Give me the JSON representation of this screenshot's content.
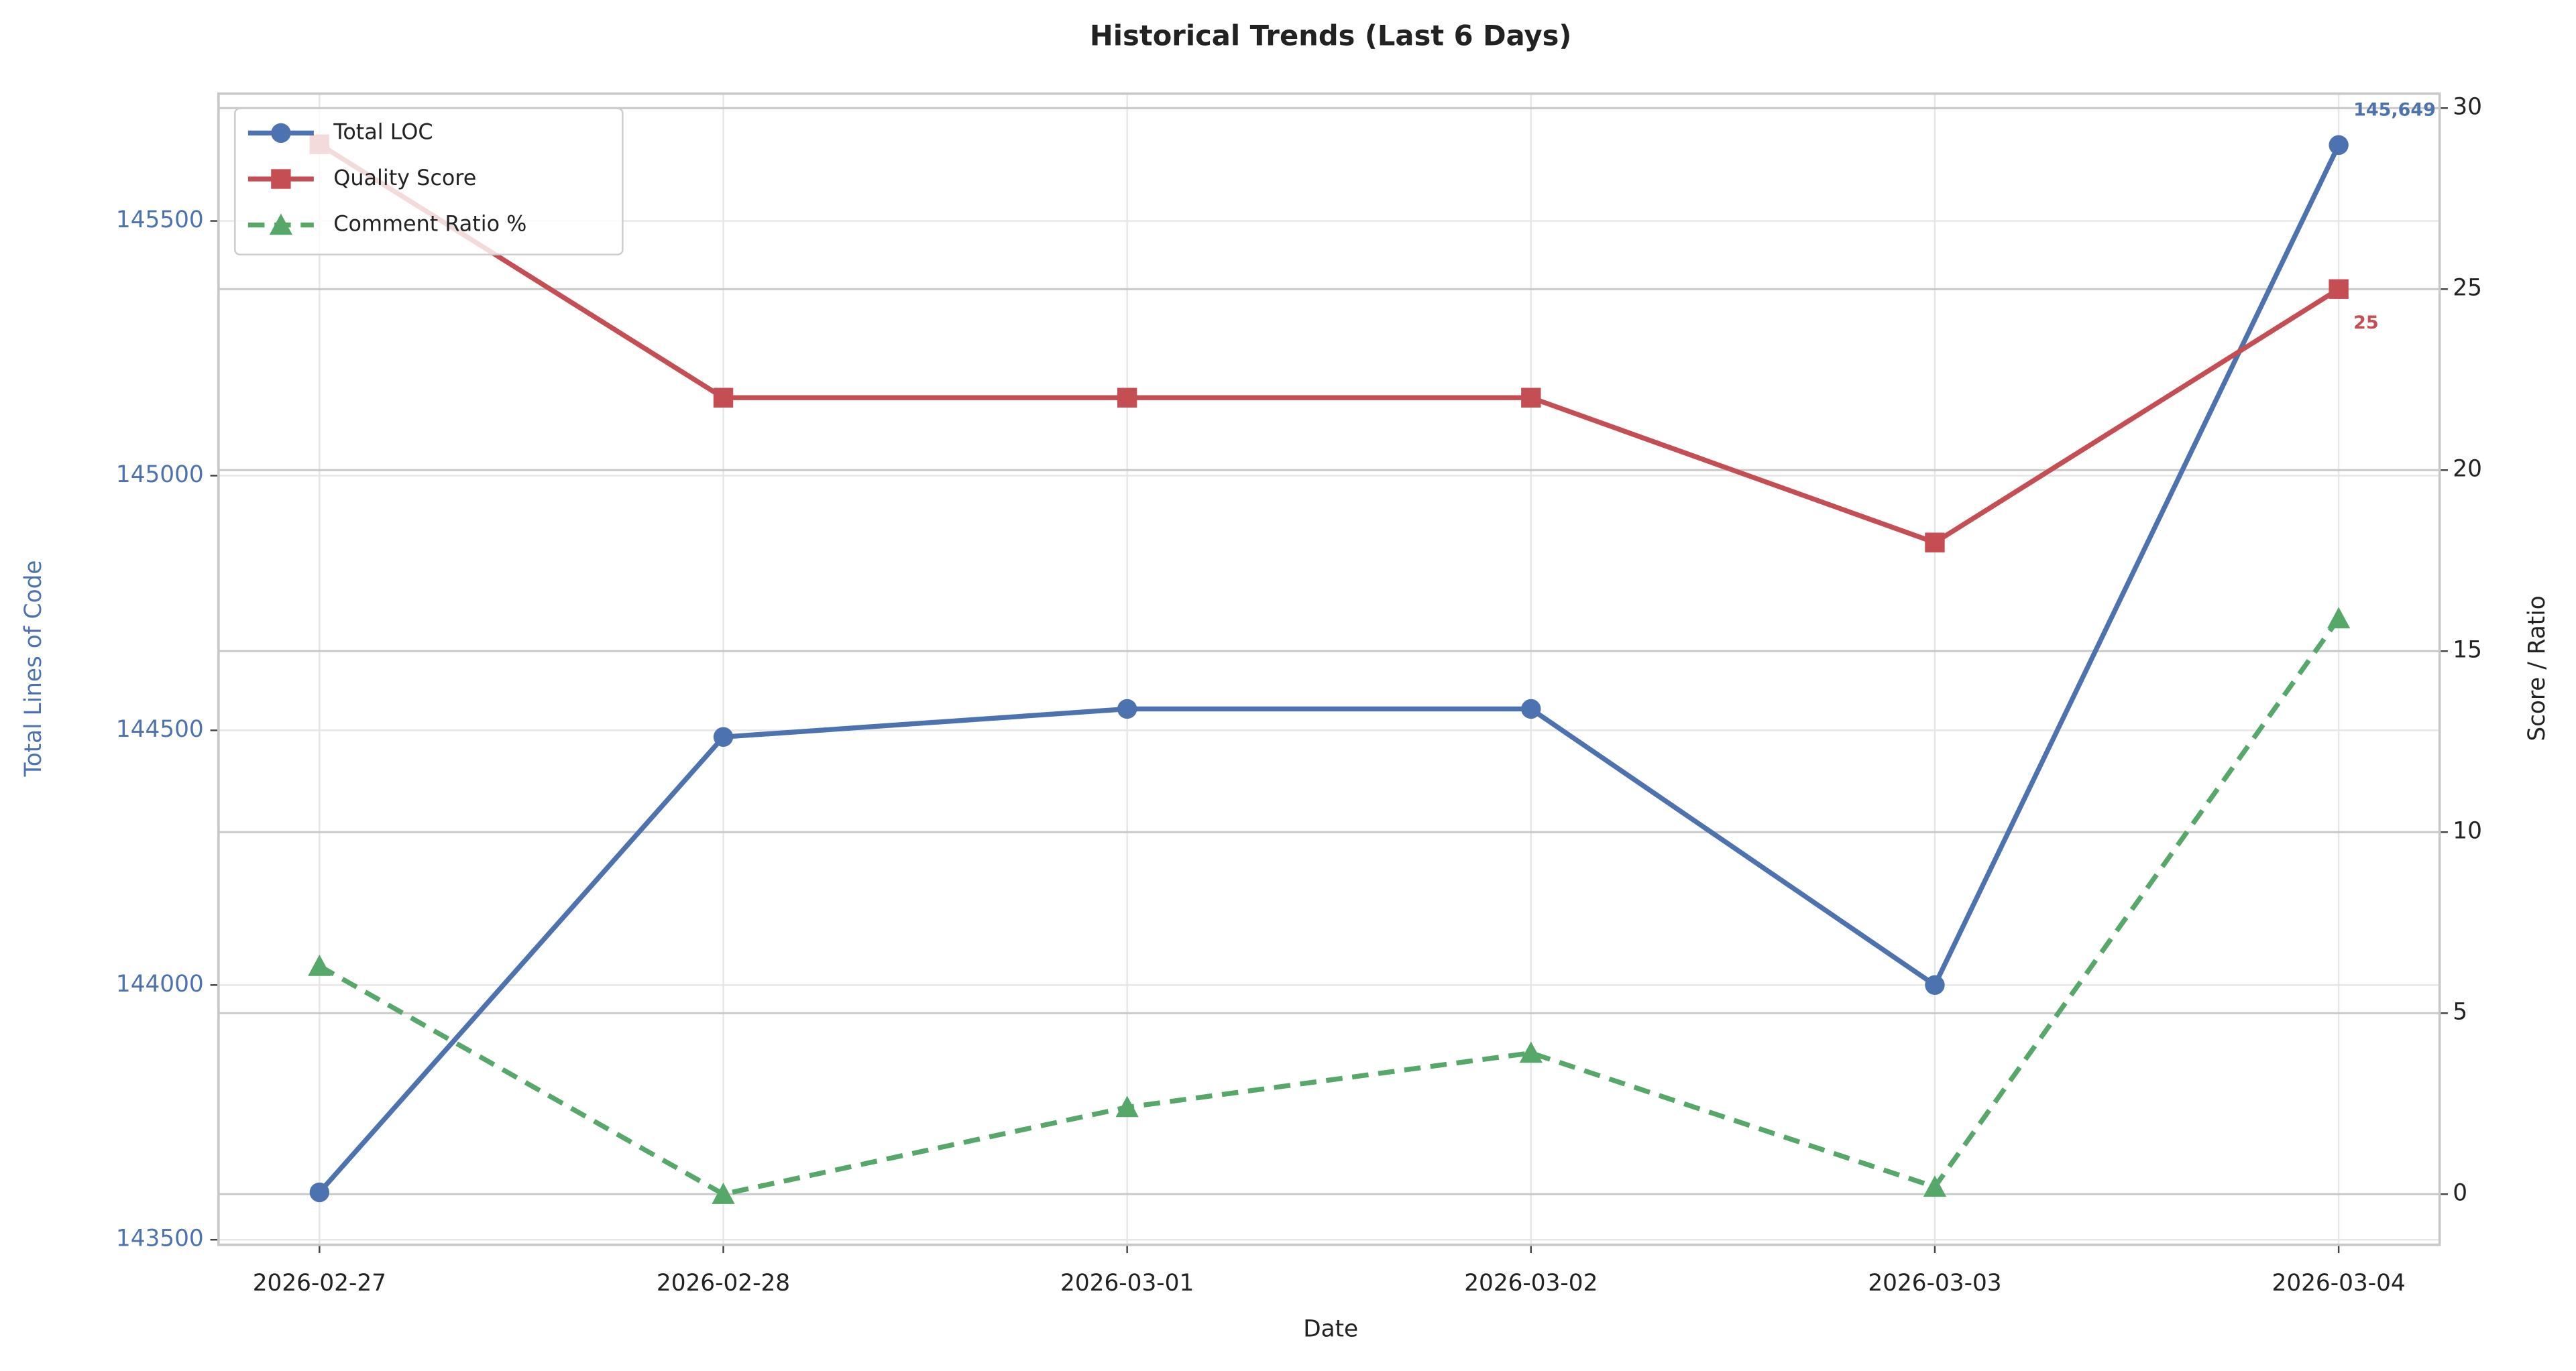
{
  "chart_data": {
    "type": "line",
    "title": "Historical Trends (Last 6 Days)",
    "xlabel": "Date",
    "ylabel": "Total Lines of Code",
    "y2label": "Score / Ratio",
    "categories": [
      "2026-02-27",
      "2026-02-28",
      "2026-03-01",
      "2026-03-02",
      "2026-03-03",
      "2026-03-04"
    ],
    "ylim": [
      143490,
      145750
    ],
    "yticks": [
      143500,
      144000,
      144500,
      145000,
      145500
    ],
    "y2lim": [
      -1.4,
      30.4
    ],
    "y2ticks": [
      0,
      5,
      10,
      15,
      20,
      25,
      30
    ],
    "grid": true,
    "legend": "upper left",
    "ylabel_color": "#4c72b0",
    "series": [
      {
        "name": "Total LOC",
        "color": "#4c72b0",
        "marker": "circle",
        "linestyle": "solid",
        "values": [
          143593,
          144487,
          144542,
          144542,
          144000,
          145649
        ],
        "value_labels": [
          null,
          null,
          null,
          null,
          null,
          "145,649"
        ]
      },
      {
        "name": "Quality Score",
        "color": "#c44e52",
        "marker": "square",
        "linestyle": "solid",
        "axis": "y2",
        "values": [
          29,
          22,
          22,
          22,
          18,
          25
        ],
        "value_labels": [
          null,
          null,
          null,
          null,
          null,
          "25"
        ]
      },
      {
        "name": "Comment Ratio %",
        "color": "#55a868",
        "marker": "triangle",
        "linestyle": "dashed",
        "axis": "y2",
        "values": [
          6.3,
          0.0,
          2.4,
          3.9,
          0.2,
          15.9
        ]
      }
    ]
  }
}
